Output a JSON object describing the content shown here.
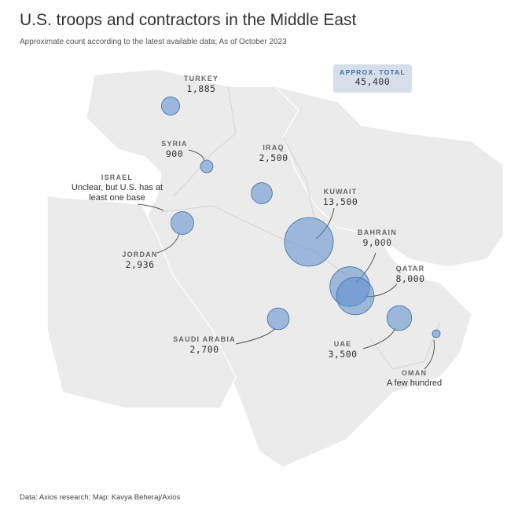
{
  "header": {
    "title": "U.S. troops and contractors in the Middle East",
    "subtitle": "Approximate count according to the latest available data; As of October 2023"
  },
  "total": {
    "label": "APPROX. TOTAL",
    "value": 45400,
    "value_label": "45,400"
  },
  "markers": [
    {
      "name": "TURKEY",
      "value": 1885,
      "value_label": "1,885"
    },
    {
      "name": "SYRIA",
      "value": 900,
      "value_label": "900"
    },
    {
      "name": "IRAQ",
      "value": 2500,
      "value_label": "2,500"
    },
    {
      "name": "ISRAEL",
      "value": null,
      "value_label": "Unclear, but U.S. has at least one base"
    },
    {
      "name": "KUWAIT",
      "value": 13500,
      "value_label": "13,500"
    },
    {
      "name": "BAHRAIN",
      "value": 9000,
      "value_label": "9,000"
    },
    {
      "name": "JORDAN",
      "value": 2936,
      "value_label": "2,936"
    },
    {
      "name": "QATAR",
      "value": 8000,
      "value_label": "8,000"
    },
    {
      "name": "SAUDI ARABIA",
      "value": 2700,
      "value_label": "2,700"
    },
    {
      "name": "UAE",
      "value": 3500,
      "value_label": "3,500"
    },
    {
      "name": "OMAN",
      "value": null,
      "value_label": "A few hundred"
    }
  ],
  "footer": "Data: Axios research; Map: Kavya Beheraj/Axios"
}
